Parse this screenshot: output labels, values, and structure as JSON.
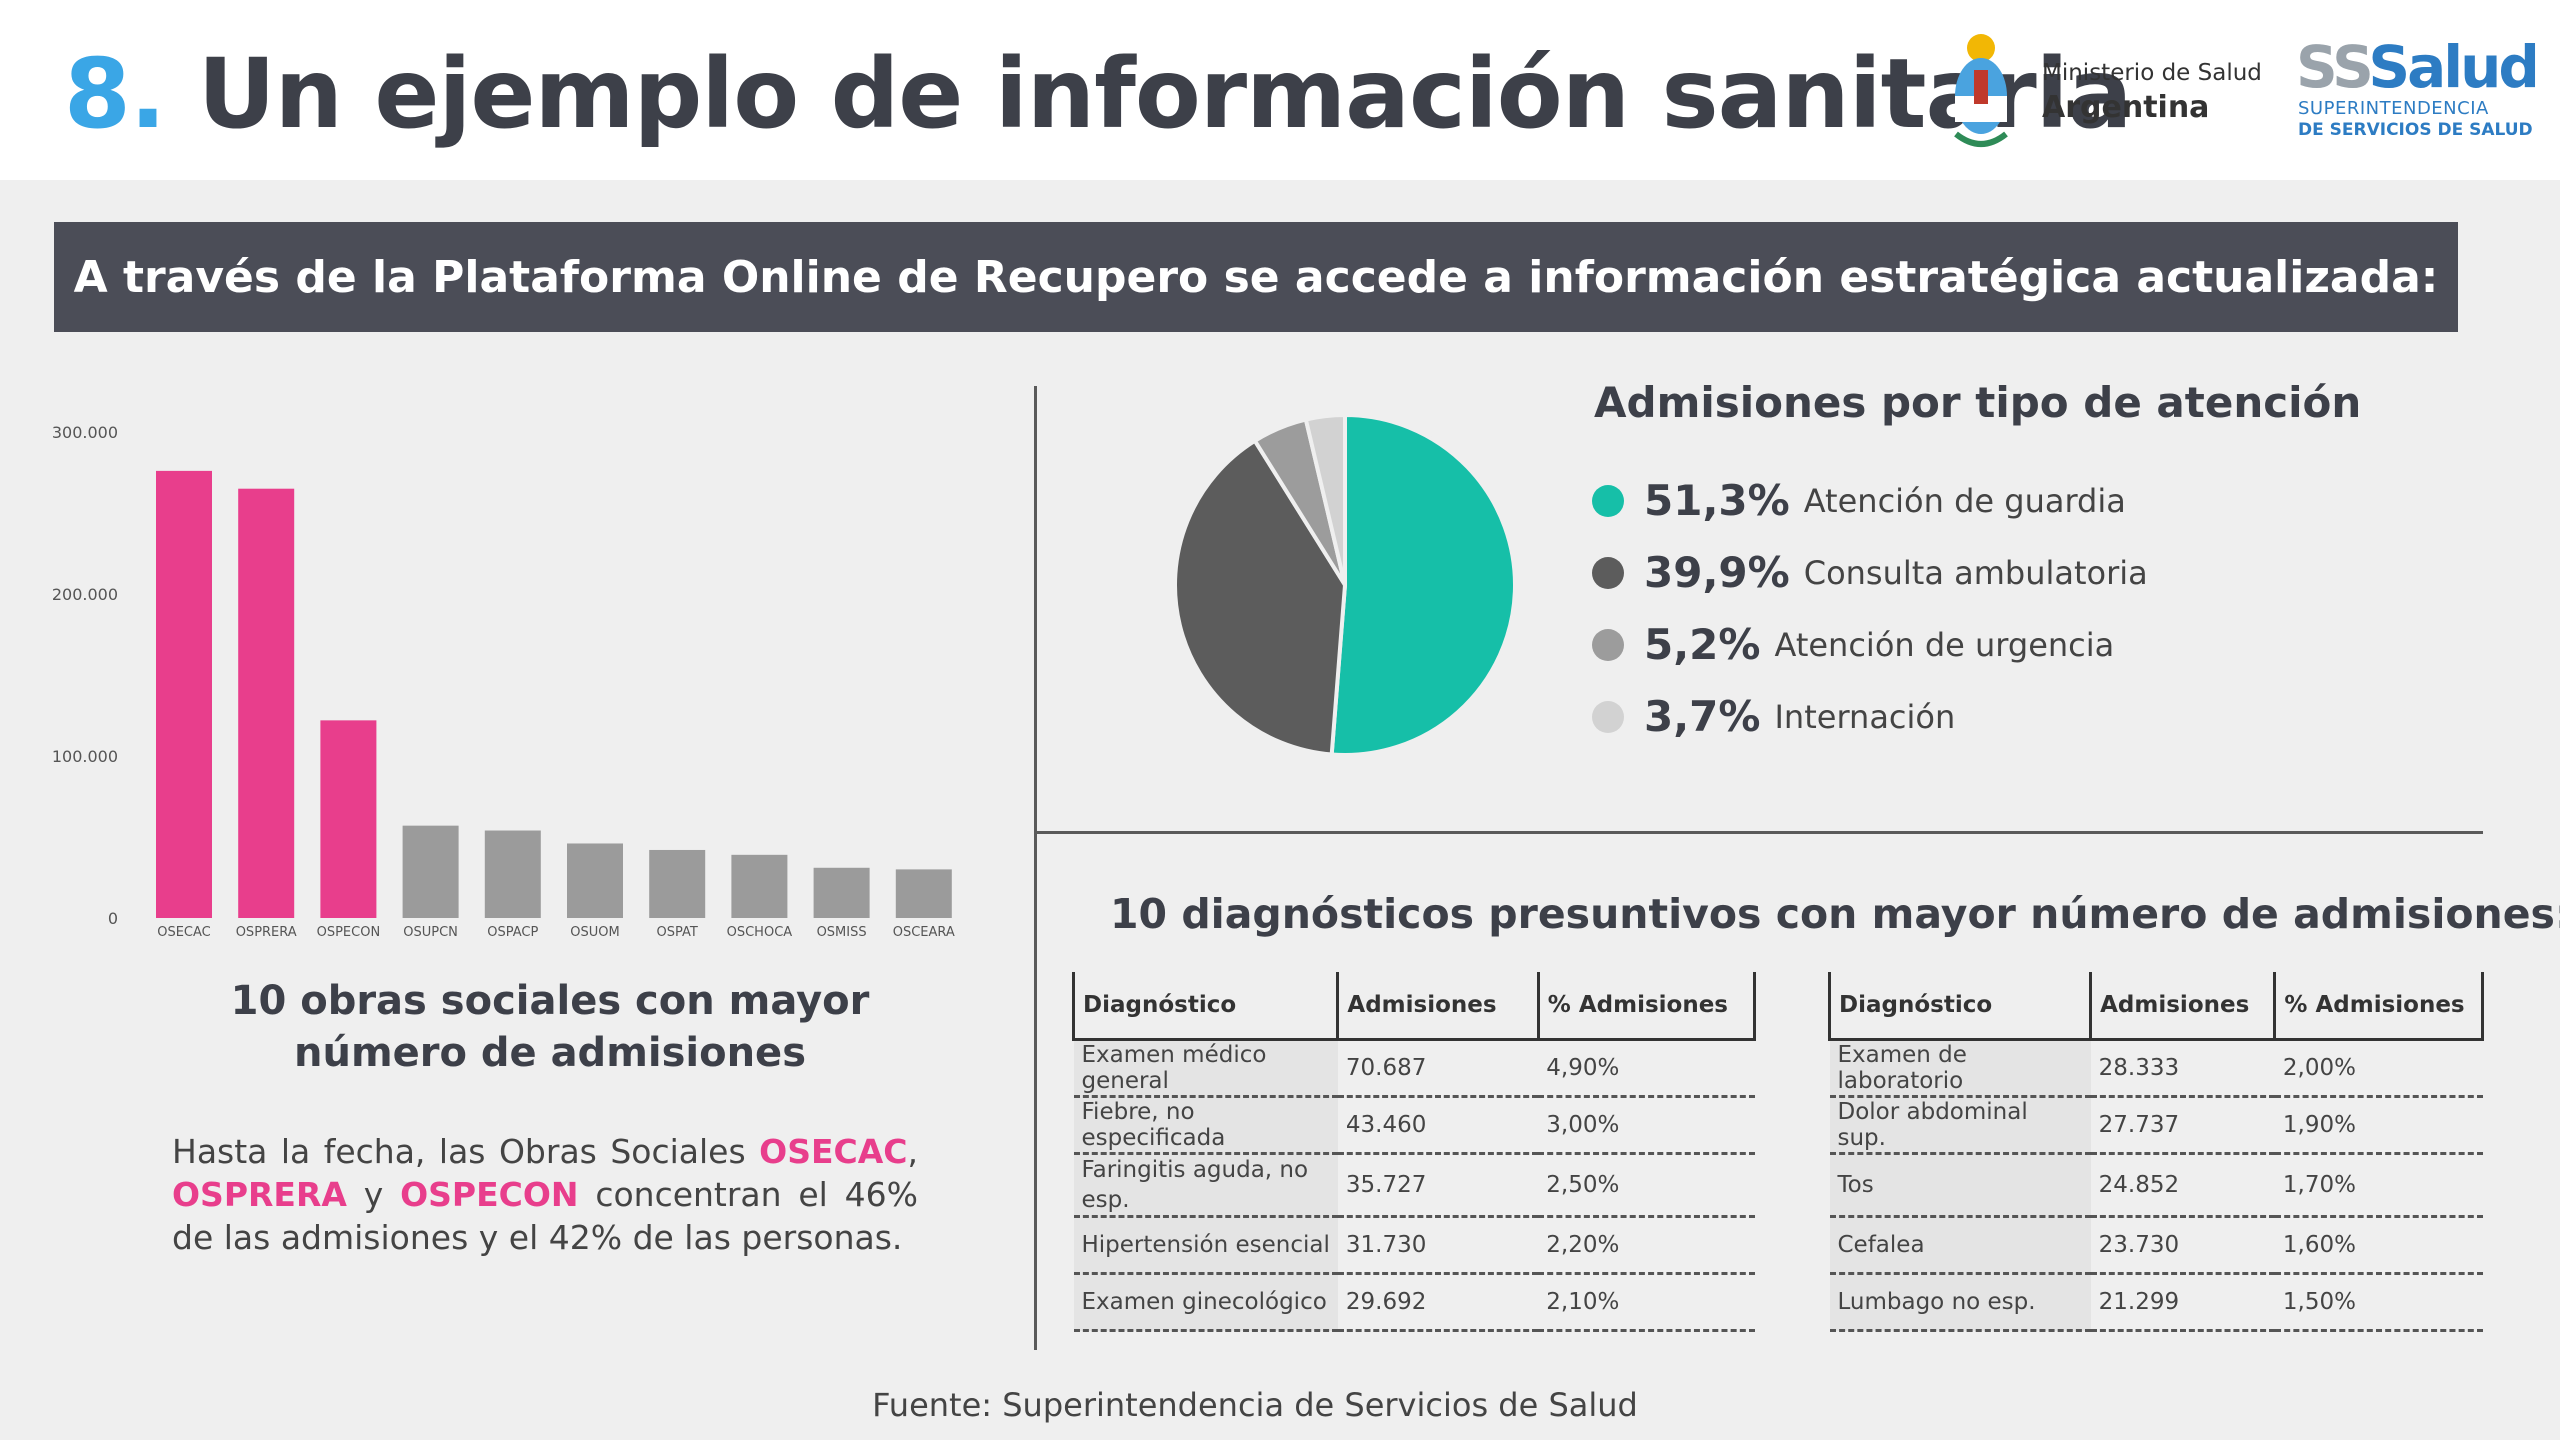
{
  "header": {
    "title_number": "8.",
    "title_text": "Un ejemplo de información sanitaria",
    "ministry_line1": "Ministerio de Salud",
    "ministry_line2": "Argentina",
    "sss_logo_ss": "SS",
    "sss_logo_word": "Salud",
    "sss_logo_line2": "SUPERINTENDENCIA",
    "sss_logo_line3": "DE SERVICIOS DE SALUD"
  },
  "banner": "A través de la Plataforma Online de Recupero se accede a información estratégica actualizada:",
  "bar_section": {
    "title": "10 obras sociales con mayor número de admisiones",
    "desc_1": "Hasta la fecha, las Obras Sociales ",
    "hl_1": "OSECAC",
    "desc_2": ", ",
    "hl_2": "OSPRERA",
    "desc_3": " y ",
    "hl_3": "OSPECON",
    "desc_4": " concentran el 46% de las admisiones y el 42% de las personas."
  },
  "pie_section": {
    "title": "Admisiones por tipo de atención"
  },
  "diag_section": {
    "title": "10 diagnósticos presuntivos con mayor número de admisiones:",
    "headers": [
      "Diagnóstico",
      "Admisiones",
      "% Admisiones"
    ],
    "left_rows": [
      [
        "Examen médico general",
        "70.687",
        "4,90%"
      ],
      [
        "Fiebre, no especificada",
        "43.460",
        "3,00%"
      ],
      [
        "Faringitis aguda, no esp.",
        "35.727",
        "2,50%"
      ],
      [
        "Hipertensión esencial",
        "31.730",
        "2,20%"
      ],
      [
        "Examen ginecológico",
        "29.692",
        "2,10%"
      ]
    ],
    "right_rows": [
      [
        "Examen de laboratorio",
        "28.333",
        "2,00%"
      ],
      [
        "Dolor abdominal sup.",
        "27.737",
        "1,90%"
      ],
      [
        "Tos",
        "24.852",
        "1,70%"
      ],
      [
        "Cefalea",
        "23.730",
        "1,60%"
      ],
      [
        "Lumbago no esp.",
        "21.299",
        "1,50%"
      ]
    ]
  },
  "source": "Fuente: Superintendencia de Servicios de Salud",
  "chart_data": [
    {
      "type": "bar",
      "title": "10 obras sociales con mayor número de admisiones",
      "categories": [
        "OSECAC",
        "OSPRERA",
        "OSPECON",
        "OSUPCN",
        "OSPACP",
        "OSUOM",
        "OSPAT",
        "OSCHOCA",
        "OSMISS",
        "OSCEARA"
      ],
      "values": [
        276000,
        265000,
        122000,
        57000,
        54000,
        46000,
        42000,
        39000,
        31000,
        30000
      ],
      "colors": [
        "#e83e8c",
        "#e83e8c",
        "#e83e8c",
        "#9b9b9b",
        "#9b9b9b",
        "#9b9b9b",
        "#9b9b9b",
        "#9b9b9b",
        "#9b9b9b",
        "#9b9b9b"
      ],
      "ylim": [
        0,
        300000
      ],
      "yticks": [
        0,
        100000,
        200000,
        300000
      ],
      "ytick_labels": [
        "0",
        "100.000",
        "200.000",
        "300.000"
      ],
      "grid": false,
      "xlabel": "",
      "ylabel": ""
    },
    {
      "type": "pie",
      "title": "Admisiones por tipo de atención",
      "legend_position": "right",
      "slices": [
        {
          "label": "Atención de guardia",
          "value": 51.3,
          "display": "51,3%",
          "color": "#16bfa8"
        },
        {
          "label": "Consulta ambulatoria",
          "value": 39.9,
          "display": "39,9%",
          "color": "#5c5c5c"
        },
        {
          "label": "Atención de urgencia",
          "value": 5.2,
          "display": "5,2%",
          "color": "#9c9c9c"
        },
        {
          "label": "Internación",
          "value": 3.7,
          "display": "3,7%",
          "color": "#d2d2d2"
        }
      ]
    }
  ]
}
